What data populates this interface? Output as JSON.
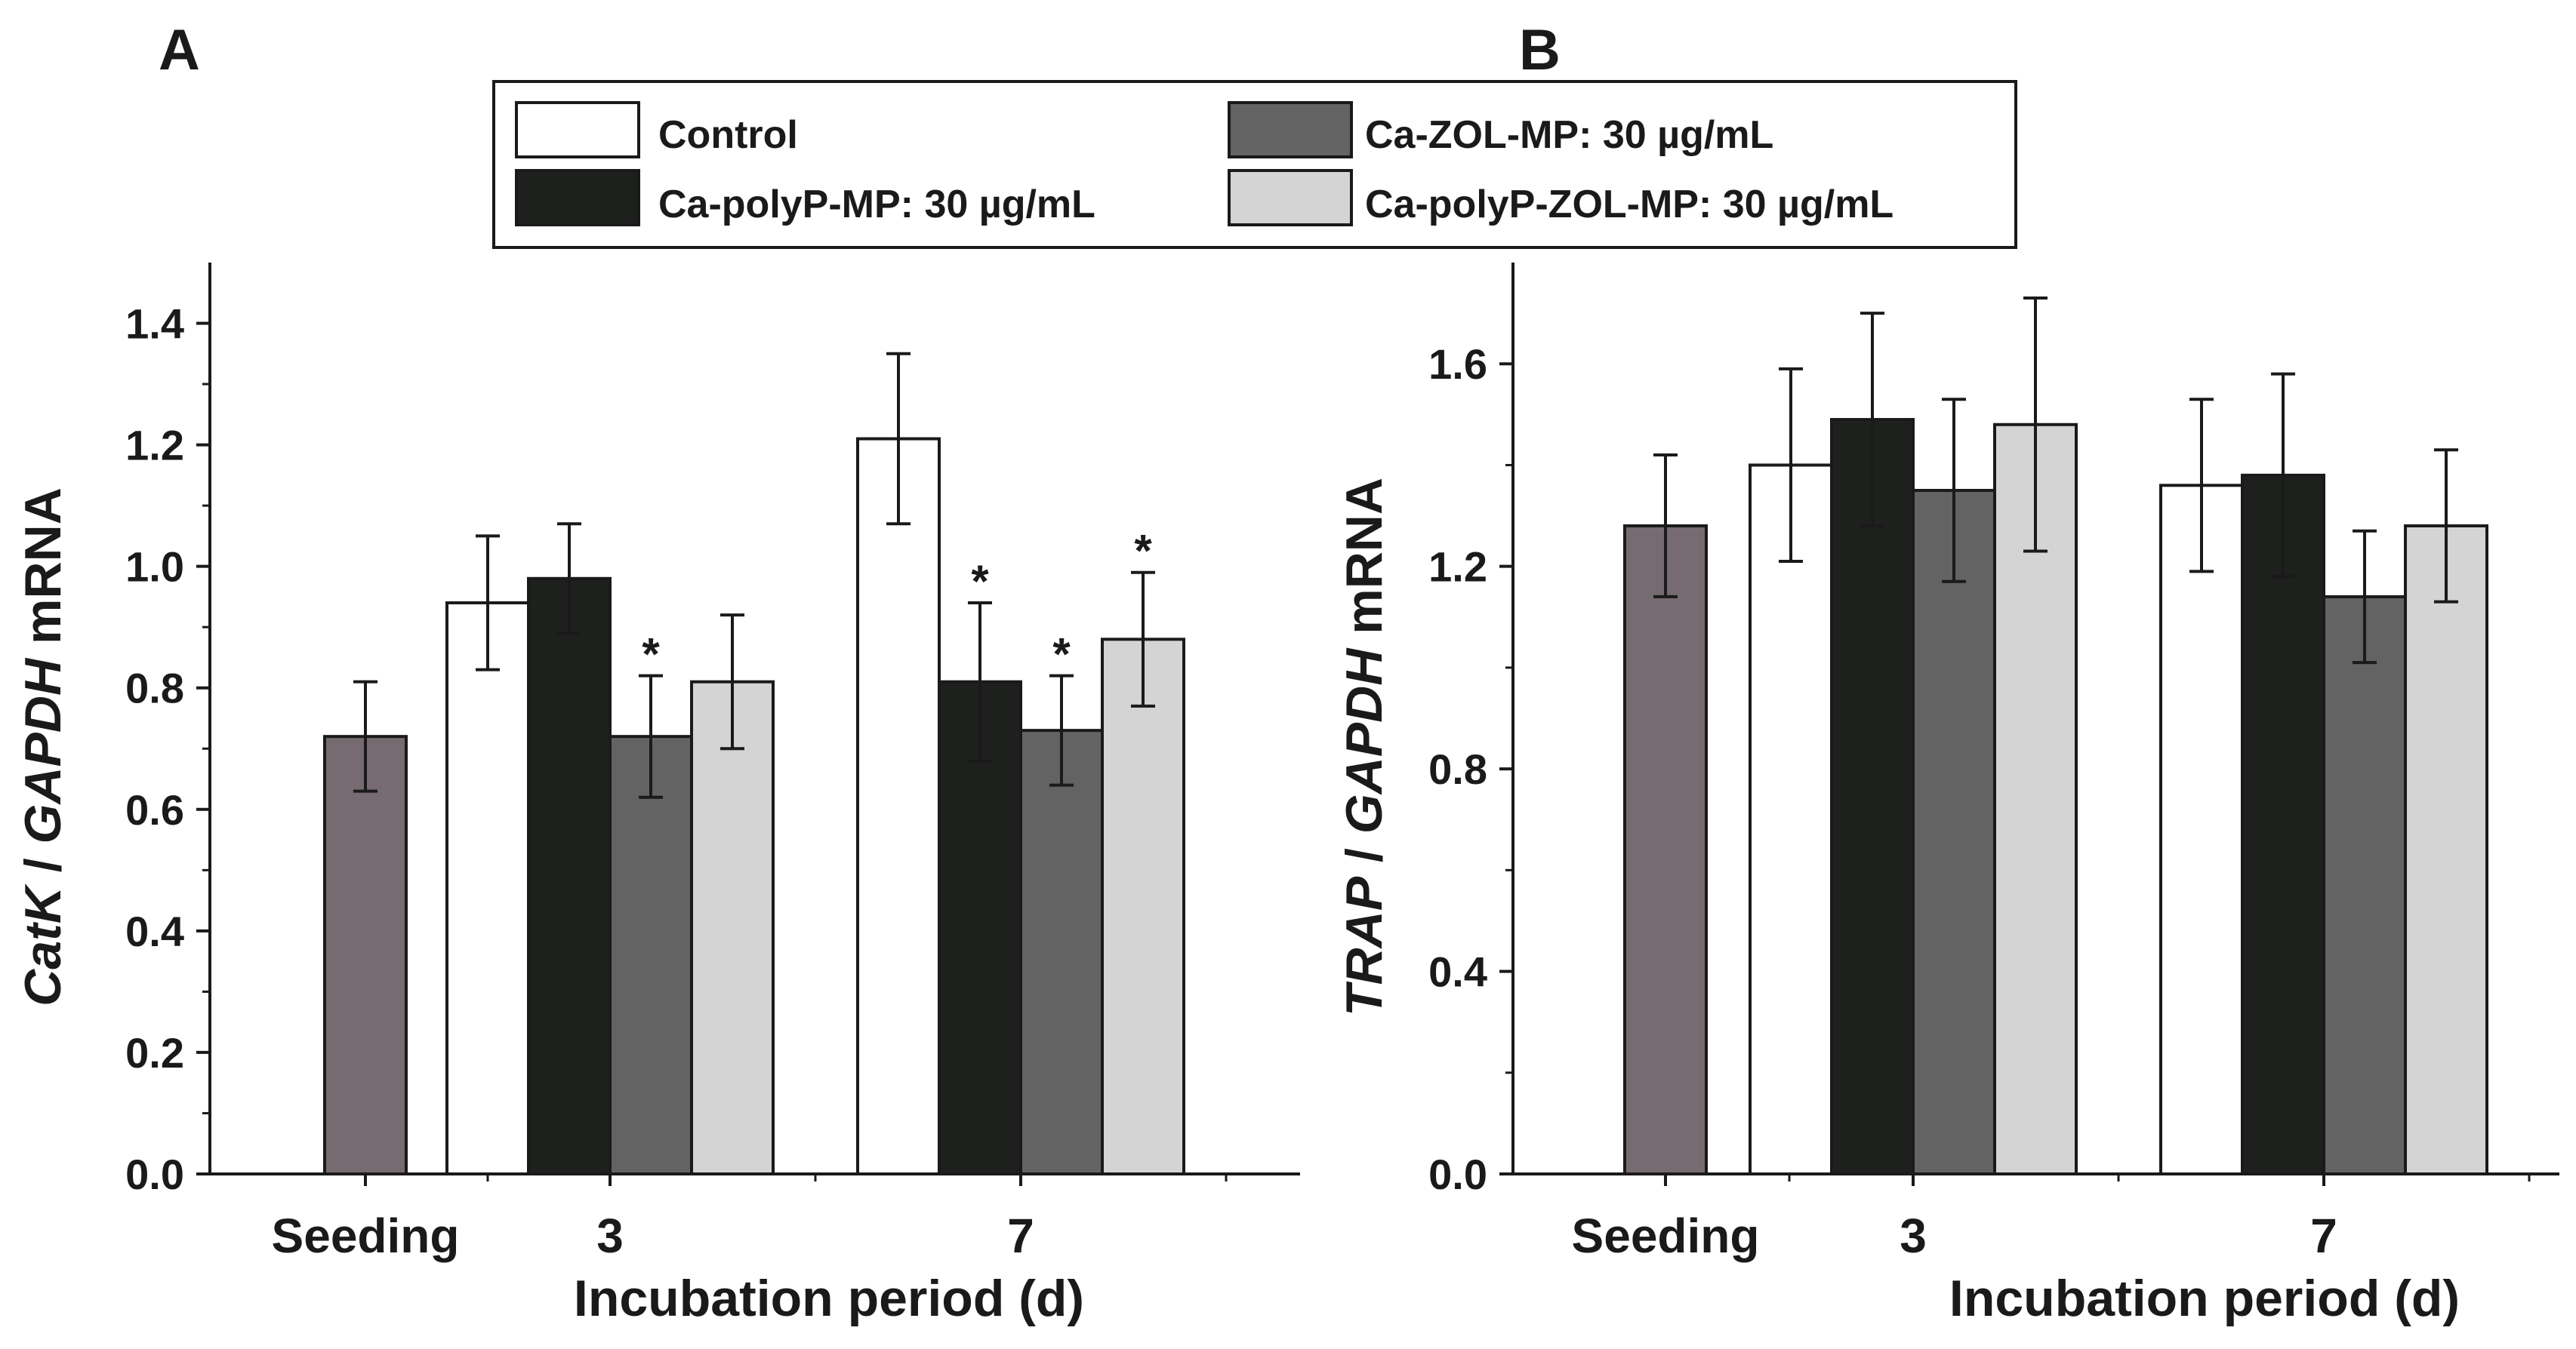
{
  "legend": {
    "items": [
      {
        "label": "Control",
        "color": "#ffffff"
      },
      {
        "label": "Ca-ZOL-MP: 30 µg/mL",
        "color": "#636363"
      },
      {
        "label": "Ca-polyP-MP: 30 µg/mL",
        "color": "#1e201e"
      },
      {
        "label": "Ca-polyP-ZOL-MP: 30 µg/mL",
        "color": "#d4d4d4"
      }
    ]
  },
  "seeding_color": "#766b70",
  "chart_data": [
    {
      "type": "bar",
      "panel_label": "A",
      "xlabel": "Incubation period (d)",
      "ylabel_parts": {
        "italic1": "CatK",
        "sep": " / ",
        "italic2": "GAPDH",
        "rest": " mRNA"
      },
      "ylim": [
        0,
        1.5
      ],
      "yticks": [
        0.0,
        0.2,
        0.4,
        0.6,
        0.8,
        1.0,
        1.2,
        1.4
      ],
      "ytick_labels": [
        "0.0",
        "0.2",
        "0.4",
        "0.6",
        "0.8",
        "1.0",
        "1.2",
        "1.4"
      ],
      "categories": [
        "Seeding",
        "3",
        "7"
      ],
      "seeding": {
        "value": 0.72,
        "error": 0.09
      },
      "series": [
        {
          "name": "Control",
          "values": [
            null,
            0.94,
            1.21
          ],
          "errors": [
            null,
            0.11,
            0.14
          ],
          "sig": [
            false,
            false,
            false
          ]
        },
        {
          "name": "Ca-polyP-MP: 30 µg/mL",
          "values": [
            null,
            0.98,
            0.81
          ],
          "errors": [
            null,
            0.09,
            0.13
          ],
          "sig": [
            false,
            false,
            true
          ]
        },
        {
          "name": "Ca-ZOL-MP: 30 µg/mL",
          "values": [
            null,
            0.72,
            0.73
          ],
          "errors": [
            null,
            0.1,
            0.09
          ],
          "sig": [
            false,
            true,
            true
          ]
        },
        {
          "name": "Ca-polyP-ZOL-MP: 30 µg/mL",
          "values": [
            null,
            0.81,
            0.88
          ],
          "errors": [
            null,
            0.11,
            0.11
          ],
          "sig": [
            false,
            false,
            true
          ]
        }
      ],
      "sig_marker": "*"
    },
    {
      "type": "bar",
      "panel_label": "B",
      "xlabel": "Incubation period (d)",
      "ylabel_parts": {
        "italic1": "TRAP",
        "sep": " / ",
        "italic2": "GAPDH",
        "rest": " mRNA"
      },
      "ylim": [
        0,
        1.8
      ],
      "yticks": [
        0.0,
        0.4,
        0.8,
        1.2,
        1.6
      ],
      "ytick_labels": [
        "0.0",
        "0.4",
        "0.8",
        "1.2",
        "1.6"
      ],
      "categories": [
        "Seeding",
        "3",
        "7"
      ],
      "seeding": {
        "value": 1.28,
        "error": 0.14
      },
      "series": [
        {
          "name": "Control",
          "values": [
            null,
            1.4,
            1.36
          ],
          "errors": [
            null,
            0.19,
            0.17
          ],
          "sig": [
            false,
            false,
            false
          ]
        },
        {
          "name": "Ca-polyP-MP: 30 µg/mL",
          "values": [
            null,
            1.49,
            1.38
          ],
          "errors": [
            null,
            0.21,
            0.2
          ],
          "sig": [
            false,
            false,
            false
          ]
        },
        {
          "name": "Ca-ZOL-MP: 30 µg/mL",
          "values": [
            null,
            1.35,
            1.14
          ],
          "errors": [
            null,
            0.18,
            0.13
          ],
          "sig": [
            false,
            false,
            false
          ]
        },
        {
          "name": "Ca-polyP-ZOL-MP: 30 µg/mL",
          "values": [
            null,
            1.48,
            1.28
          ],
          "errors": [
            null,
            0.25,
            0.15
          ],
          "sig": [
            false,
            false,
            false
          ]
        }
      ],
      "sig_marker": "*"
    }
  ]
}
